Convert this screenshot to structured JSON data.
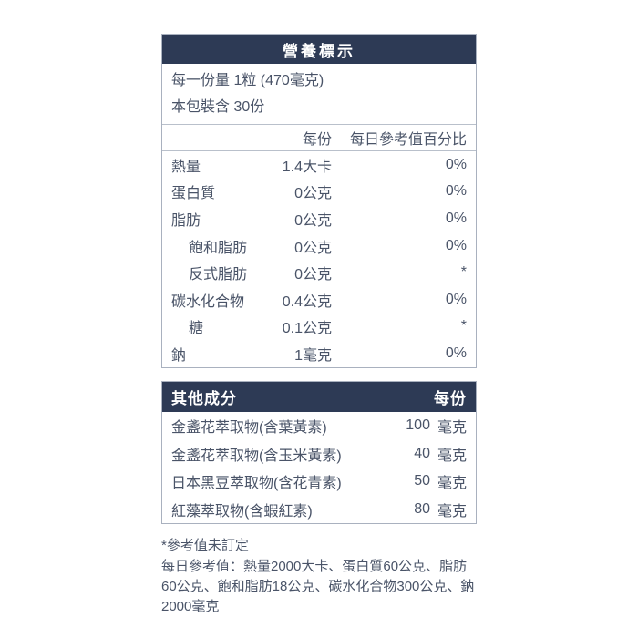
{
  "colors": {
    "header_bg": "#2d3a55",
    "header_text": "#ffffff",
    "body_text": "#4a5468",
    "panel_border": "#a9b1bf",
    "divider": "#b9c0cb",
    "page_bg": "#ffffff"
  },
  "nutrition_panel": {
    "title": "營養標示",
    "serving_size": "每一份量 1粒 (470毫克)",
    "servings_per_package": "本包裝含 30份",
    "columns": {
      "per_serving": "每份",
      "daily_value_pct": "每日參考值百分比"
    },
    "rows": [
      {
        "label": "熱量",
        "amount": "1.4大卡",
        "dv": "0%"
      },
      {
        "label": "蛋白質",
        "amount": "0公克",
        "dv": "0%"
      },
      {
        "label": "脂肪",
        "amount": "0公克",
        "dv": "0%"
      },
      {
        "label": "飽和脂肪",
        "amount": "0公克",
        "dv": "0%"
      },
      {
        "label": "反式脂肪",
        "amount": "0公克",
        "dv": "*"
      },
      {
        "label": "碳水化合物",
        "amount": "0.4公克",
        "dv": "0%"
      },
      {
        "label": "糖",
        "amount": "0.1公克",
        "dv": "*"
      },
      {
        "label": "鈉",
        "amount": "1毫克",
        "dv": "0%"
      }
    ]
  },
  "other_ingredients": {
    "title": "其他成分",
    "per_serving_label": "每份",
    "rows": [
      {
        "label": "金盞花萃取物(含葉黃素)",
        "amount": "100",
        "unit": "毫克"
      },
      {
        "label": "金盞花萃取物(含玉米黃素)",
        "amount": "40",
        "unit": "毫克"
      },
      {
        "label": "日本黑豆萃取物(含花青素)",
        "amount": "50",
        "unit": "毫克"
      },
      {
        "label": "紅藻萃取物(含蝦紅素)",
        "amount": "80",
        "unit": "毫克"
      }
    ]
  },
  "footnotes": {
    "undetermined_note": "*參考值未訂定",
    "daily_reference_values": "每日參考值：熱量2000大卡、蛋白質60公克、脂肪60公克、飽和脂肪18公克、碳水化合物300公克、鈉2000毫克"
  }
}
